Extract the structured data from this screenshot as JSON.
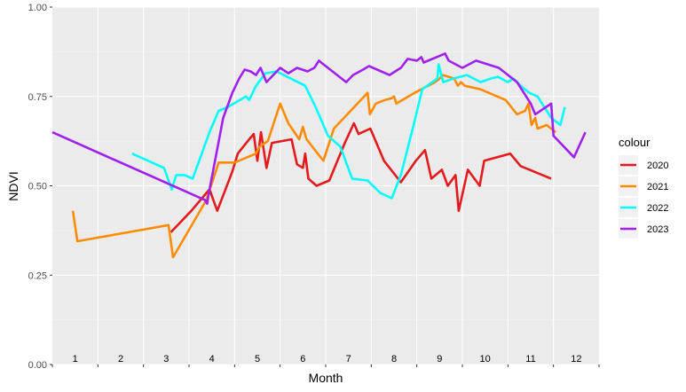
{
  "chart_data": {
    "type": "line",
    "title": "",
    "xlabel": "Month",
    "ylabel": "NDVI",
    "ylim": [
      0,
      1
    ],
    "xlim": [
      0.5,
      12.5
    ],
    "y_ticks": [
      "0.00",
      "0.25",
      "0.50",
      "0.75",
      "1.00"
    ],
    "y_tick_values": [
      0,
      0.25,
      0.5,
      0.75,
      1
    ],
    "month_labels": [
      "1",
      "2",
      "3",
      "4",
      "5",
      "6",
      "7",
      "8",
      "9",
      "10",
      "11",
      "12"
    ],
    "grid": true,
    "legend": {
      "title": "colour",
      "position": "right"
    },
    "series": [
      {
        "name": "2020",
        "color": "#e41a1c",
        "points": [
          [
            3.1,
            0.37
          ],
          [
            3.55,
            0.43
          ],
          [
            3.95,
            0.49
          ],
          [
            4.12,
            0.43
          ],
          [
            4.45,
            0.54
          ],
          [
            4.57,
            0.59
          ],
          [
            4.82,
            0.63
          ],
          [
            4.92,
            0.645
          ],
          [
            5.0,
            0.57
          ],
          [
            5.08,
            0.65
          ],
          [
            5.2,
            0.55
          ],
          [
            5.32,
            0.62
          ],
          [
            5.75,
            0.63
          ],
          [
            5.87,
            0.56
          ],
          [
            6.0,
            0.55
          ],
          [
            6.05,
            0.59
          ],
          [
            6.12,
            0.52
          ],
          [
            6.3,
            0.5
          ],
          [
            6.58,
            0.515
          ],
          [
            6.92,
            0.62
          ],
          [
            7.12,
            0.675
          ],
          [
            7.22,
            0.645
          ],
          [
            7.48,
            0.66
          ],
          [
            7.78,
            0.57
          ],
          [
            8.15,
            0.51
          ],
          [
            8.48,
            0.57
          ],
          [
            8.68,
            0.6
          ],
          [
            8.82,
            0.52
          ],
          [
            9.05,
            0.545
          ],
          [
            9.18,
            0.5
          ],
          [
            9.35,
            0.53
          ],
          [
            9.42,
            0.43
          ],
          [
            9.62,
            0.545
          ],
          [
            9.88,
            0.5
          ],
          [
            9.98,
            0.57
          ],
          [
            10.55,
            0.59
          ],
          [
            10.78,
            0.555
          ],
          [
            11.45,
            0.52
          ]
        ]
      },
      {
        "name": "2021",
        "color": "#ff8c00",
        "points": [
          [
            0.95,
            0.43
          ],
          [
            1.05,
            0.345
          ],
          [
            3.05,
            0.39
          ],
          [
            3.15,
            0.3
          ],
          [
            3.88,
            0.46
          ],
          [
            4.15,
            0.565
          ],
          [
            4.5,
            0.565
          ],
          [
            4.97,
            0.59
          ],
          [
            5.05,
            0.61
          ],
          [
            5.23,
            0.625
          ],
          [
            5.5,
            0.73
          ],
          [
            5.68,
            0.675
          ],
          [
            5.92,
            0.63
          ],
          [
            6.0,
            0.665
          ],
          [
            6.08,
            0.63
          ],
          [
            6.45,
            0.57
          ],
          [
            6.68,
            0.66
          ],
          [
            7.42,
            0.76
          ],
          [
            7.47,
            0.7
          ],
          [
            7.6,
            0.73
          ],
          [
            7.8,
            0.74
          ],
          [
            7.95,
            0.745
          ],
          [
            8.0,
            0.75
          ],
          [
            8.05,
            0.73
          ],
          [
            8.45,
            0.76
          ],
          [
            8.75,
            0.78
          ],
          [
            8.9,
            0.79
          ],
          [
            9.0,
            0.8
          ],
          [
            9.08,
            0.81
          ],
          [
            9.32,
            0.8
          ],
          [
            9.4,
            0.78
          ],
          [
            9.47,
            0.79
          ],
          [
            9.55,
            0.78
          ],
          [
            9.9,
            0.77
          ],
          [
            10.45,
            0.74
          ],
          [
            10.7,
            0.7
          ],
          [
            10.88,
            0.71
          ],
          [
            10.95,
            0.73
          ],
          [
            11.02,
            0.67
          ],
          [
            11.1,
            0.69
          ],
          [
            11.15,
            0.66
          ],
          [
            11.35,
            0.67
          ],
          [
            11.55,
            0.65
          ]
        ]
      },
      {
        "name": "2022",
        "color": "#00ffff",
        "points": [
          [
            2.25,
            0.59
          ],
          [
            2.95,
            0.55
          ],
          [
            3.12,
            0.49
          ],
          [
            3.22,
            0.53
          ],
          [
            3.4,
            0.53
          ],
          [
            3.58,
            0.52
          ],
          [
            3.95,
            0.65
          ],
          [
            4.15,
            0.71
          ],
          [
            4.35,
            0.72
          ],
          [
            4.75,
            0.75
          ],
          [
            4.82,
            0.74
          ],
          [
            4.97,
            0.78
          ],
          [
            5.18,
            0.815
          ],
          [
            5.42,
            0.82
          ],
          [
            6.05,
            0.78
          ],
          [
            6.28,
            0.72
          ],
          [
            6.55,
            0.64
          ],
          [
            6.82,
            0.61
          ],
          [
            7.08,
            0.52
          ],
          [
            7.42,
            0.515
          ],
          [
            7.7,
            0.48
          ],
          [
            7.95,
            0.465
          ],
          [
            8.15,
            0.53
          ],
          [
            8.45,
            0.68
          ],
          [
            8.62,
            0.77
          ],
          [
            8.95,
            0.8
          ],
          [
            8.98,
            0.84
          ],
          [
            9.08,
            0.79
          ],
          [
            9.3,
            0.8
          ],
          [
            9.6,
            0.81
          ],
          [
            9.9,
            0.79
          ],
          [
            10.12,
            0.8
          ],
          [
            10.28,
            0.805
          ],
          [
            10.5,
            0.79
          ],
          [
            10.62,
            0.8
          ],
          [
            10.78,
            0.78
          ],
          [
            10.97,
            0.76
          ],
          [
            11.15,
            0.75
          ],
          [
            11.45,
            0.69
          ],
          [
            11.65,
            0.67
          ],
          [
            11.75,
            0.72
          ]
        ]
      },
      {
        "name": "2023",
        "color": "#a020f0",
        "points": [
          [
            0.5,
            0.65
          ],
          [
            3.85,
            0.46
          ],
          [
            3.9,
            0.45
          ],
          [
            3.92,
            0.47
          ],
          [
            4.25,
            0.69
          ],
          [
            4.45,
            0.76
          ],
          [
            4.6,
            0.8
          ],
          [
            4.72,
            0.825
          ],
          [
            4.85,
            0.82
          ],
          [
            4.97,
            0.81
          ],
          [
            5.07,
            0.83
          ],
          [
            5.2,
            0.79
          ],
          [
            5.5,
            0.83
          ],
          [
            5.68,
            0.815
          ],
          [
            5.87,
            0.83
          ],
          [
            6.1,
            0.82
          ],
          [
            6.25,
            0.83
          ],
          [
            6.35,
            0.85
          ],
          [
            6.45,
            0.84
          ],
          [
            6.95,
            0.79
          ],
          [
            7.1,
            0.81
          ],
          [
            7.32,
            0.825
          ],
          [
            7.45,
            0.835
          ],
          [
            7.9,
            0.81
          ],
          [
            8.15,
            0.83
          ],
          [
            8.3,
            0.855
          ],
          [
            8.5,
            0.85
          ],
          [
            8.6,
            0.86
          ],
          [
            8.65,
            0.845
          ],
          [
            9.12,
            0.87
          ],
          [
            9.2,
            0.85
          ],
          [
            9.5,
            0.83
          ],
          [
            9.8,
            0.85
          ],
          [
            10.3,
            0.83
          ],
          [
            10.7,
            0.79
          ],
          [
            11.0,
            0.73
          ],
          [
            11.1,
            0.7
          ],
          [
            11.45,
            0.73
          ],
          [
            11.5,
            0.64
          ],
          [
            11.95,
            0.58
          ],
          [
            12.2,
            0.65
          ]
        ]
      }
    ]
  }
}
